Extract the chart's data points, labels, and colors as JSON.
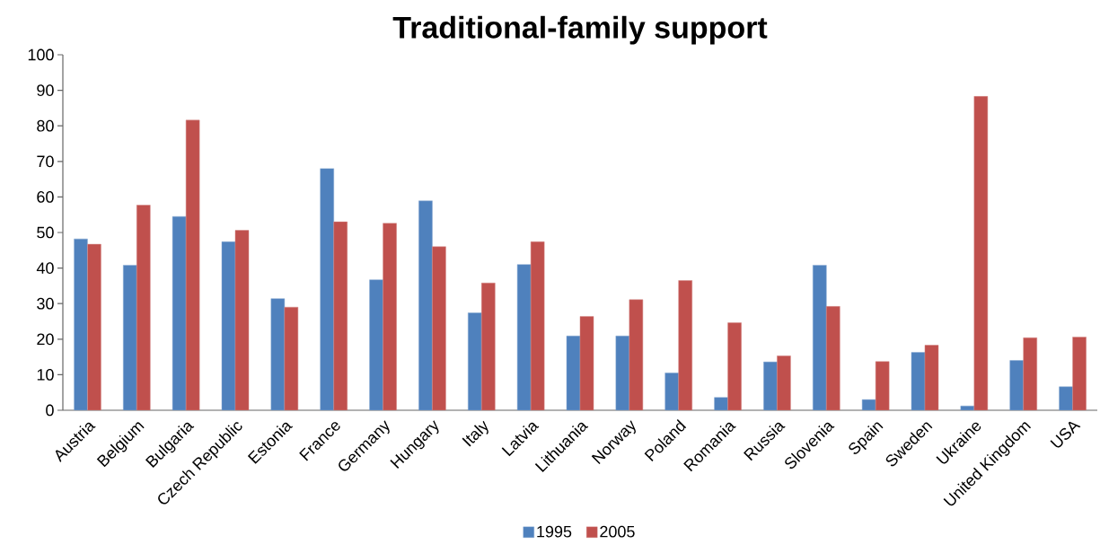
{
  "chart_data": {
    "type": "bar",
    "title": "Traditional-family support",
    "categories": [
      "Austria",
      "Belgium",
      "Bulgaria",
      "Czech Republic",
      "Estonia",
      "France",
      "Germany",
      "Hungary",
      "Italy",
      "Latvia",
      "Lithuania",
      "Norway",
      "Poland",
      "Romania",
      "Russia",
      "Slovenia",
      "Spain",
      "Sweden",
      "Ukraine",
      "United Kingdom",
      "USA"
    ],
    "series": [
      {
        "name": "1995",
        "color": "#4f81bd",
        "values": [
          48.2,
          40.8,
          54.5,
          47.4,
          31.4,
          68.0,
          36.7,
          58.9,
          27.4,
          41.0,
          20.9,
          20.9,
          10.5,
          3.6,
          13.6,
          40.8,
          3.0,
          16.3,
          1.2,
          14.0,
          6.6
        ]
      },
      {
        "name": "2005",
        "color": "#c0504d",
        "values": [
          46.7,
          57.7,
          81.6,
          50.6,
          29.0,
          53.0,
          52.6,
          46.0,
          35.8,
          47.4,
          26.4,
          31.1,
          36.5,
          24.6,
          15.3,
          29.2,
          13.7,
          18.3,
          88.3,
          20.4,
          20.6
        ]
      }
    ],
    "ylim": [
      0,
      100
    ],
    "yticks": [
      0,
      10,
      20,
      30,
      40,
      50,
      60,
      70,
      80,
      90,
      100
    ],
    "grid": false,
    "legend": "bottom"
  }
}
